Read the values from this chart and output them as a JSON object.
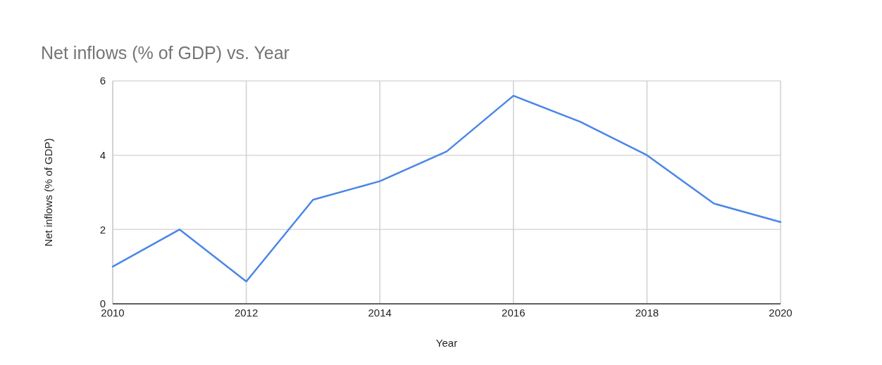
{
  "chart_data": {
    "type": "line",
    "title": "Net inflows (% of GDP) vs. Year",
    "xlabel": "Year",
    "ylabel": "Net inflows (% of GDP)",
    "x": [
      2010,
      2011,
      2012,
      2013,
      2014,
      2015,
      2016,
      2017,
      2018,
      2019,
      2020
    ],
    "series": [
      {
        "color": "#4a86e8",
        "values": [
          1.0,
          2.0,
          0.6,
          2.8,
          3.3,
          4.1,
          5.6,
          4.9,
          4.0,
          2.7,
          2.2
        ]
      }
    ],
    "xlim": [
      2010,
      2020
    ],
    "xticks": [
      2010,
      2012,
      2014,
      2016,
      2018,
      2020
    ],
    "ylim": [
      0,
      6
    ],
    "yticks": [
      0,
      2,
      4,
      6
    ],
    "grid": true,
    "marker": "none",
    "line_style": "solid"
  }
}
